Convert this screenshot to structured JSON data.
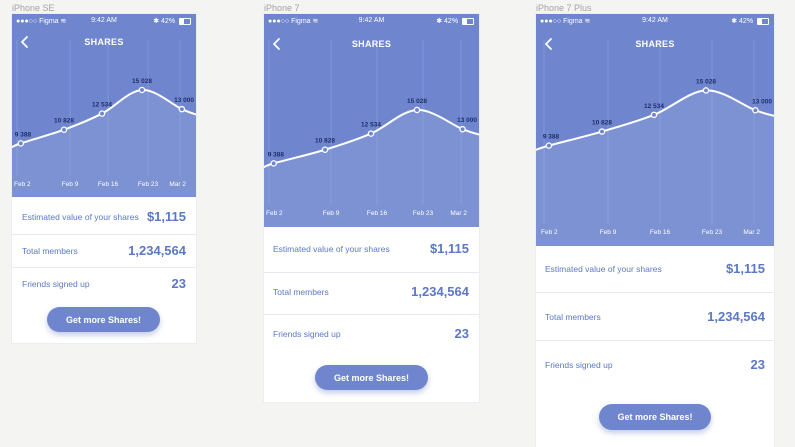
{
  "status_bar": {
    "carrier": "Figma",
    "time": "9:42 AM",
    "battery": "42%"
  },
  "screen": {
    "title": "SHARES"
  },
  "chart_data": {
    "type": "line",
    "categories": [
      "Feb 2",
      "Feb 9",
      "Feb 16",
      "Feb 23",
      "Mar 2"
    ],
    "points": [
      {
        "x": 0.1,
        "y": 9388,
        "label": "9 388"
      },
      {
        "x": 1.0,
        "y": 10828,
        "label": "10 828"
      },
      {
        "x": 2.0,
        "y": 12534,
        "label": "12 534"
      },
      {
        "x": 3.0,
        "y": 15028,
        "label": "15 028"
      },
      {
        "x": 3.95,
        "y": 13000,
        "label": "13 000"
      }
    ],
    "ylim": [
      7000,
      16500
    ],
    "grid": "vertical"
  },
  "stats": [
    {
      "label": "Estimated value of your shares",
      "value": "$1,115"
    },
    {
      "label": "Total members",
      "value": "1,234,564"
    },
    {
      "label": "Friends signed up",
      "value": "23"
    }
  ],
  "cta_label": "Get more Shares!",
  "devices": [
    {
      "name": "iPhone SE"
    },
    {
      "name": "iPhone 7"
    },
    {
      "name": "iPhone 7 Plus"
    }
  ],
  "colors": {
    "accent": "#6f86cf",
    "text": "#5b78c4",
    "page_background": "#f4f5f3"
  }
}
